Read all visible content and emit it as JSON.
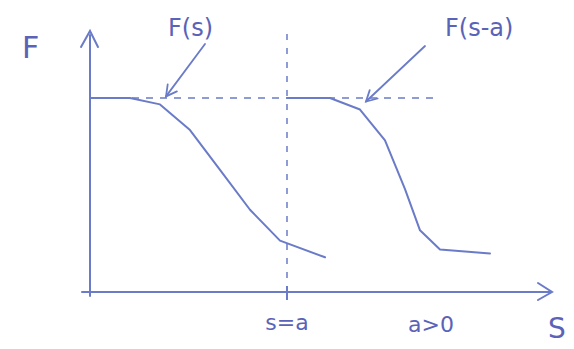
{
  "chart_data": {
    "type": "line",
    "xlabel": "S",
    "ylabel": "F",
    "xlim": [
      0,
      23
    ],
    "ylim": [
      0,
      10
    ],
    "xticks": [
      {
        "value": 9.85,
        "label": "s=a"
      }
    ],
    "tick_labels": "x",
    "grid": false,
    "color": "#6a7bc8",
    "reference_lines": {
      "y": [
        7.55
      ]
    },
    "annotations": [
      "a>0"
    ],
    "series": [
      {
        "name": "F(s)",
        "color": "#6a7bc8",
        "x": [
          0,
          2,
          3.5,
          5,
          6.5,
          8,
          9.5,
          11.75
        ],
        "values": [
          7.55,
          7.55,
          7.3,
          6.3,
          4.75,
          3.2,
          2.0,
          1.35
        ]
      },
      {
        "name": "F(s-a)",
        "color": "#6a7bc8",
        "x": [
          9.85,
          12,
          13.5,
          14.75,
          15.75,
          16.5,
          17.5,
          20
        ],
        "values": [
          7.55,
          7.55,
          7.1,
          5.9,
          4.0,
          2.4,
          1.65,
          1.5
        ]
      }
    ]
  }
}
